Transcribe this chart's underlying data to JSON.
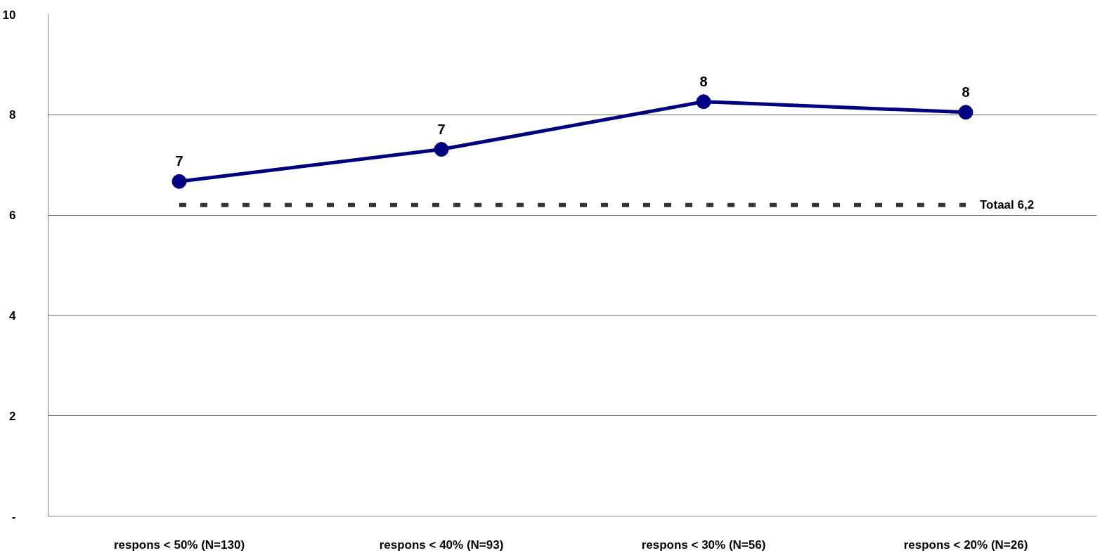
{
  "chart_data": {
    "type": "line",
    "categories": [
      "respons < 50% (N=130)",
      "respons < 40% (N=93)",
      "respons < 30% (N=56)",
      "respons < 20% (N=26)"
    ],
    "series": [
      {
        "color": "#000080",
        "values": [
          6.67,
          7.31,
          8.26,
          8.05
        ],
        "value_labels": [
          "7",
          "7",
          "8",
          "8"
        ]
      }
    ],
    "ylim": [
      0,
      10
    ],
    "yticks": [
      {
        "value": 0,
        "label": "-"
      },
      2,
      4,
      6,
      8,
      10
    ],
    "grid": "y",
    "marker": "circle",
    "line_style": "solid",
    "ref_lines": [
      {
        "axis": "y",
        "value": 6.2,
        "label": "Totaal 6,2",
        "color": "#333333",
        "line_style": "dashed"
      }
    ]
  }
}
